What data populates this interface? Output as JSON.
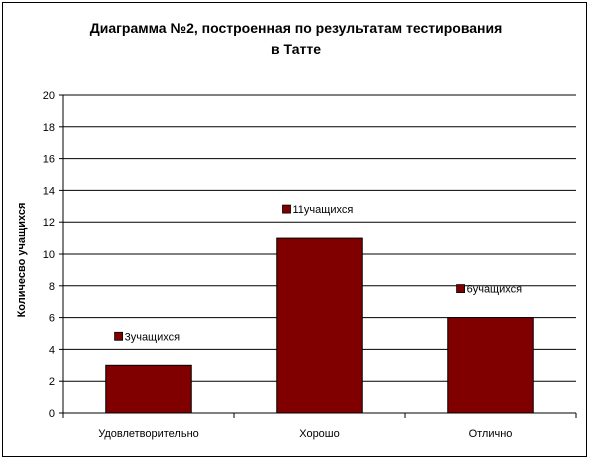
{
  "chart_data": {
    "type": "bar",
    "title_lines": [
      "Диаграмма №2, построенная по результатам тестирования",
      "в Татте"
    ],
    "xlabel": "",
    "ylabel": "Количесво учащихся",
    "categories": [
      "Удовлетворительно",
      "Хорошо",
      "Отлично"
    ],
    "values": [
      3,
      11,
      6
    ],
    "data_labels": [
      "3учащихся",
      "11учащихся",
      "6учащихся"
    ],
    "ylim": [
      0,
      20
    ],
    "ytick_step": 2,
    "grid": true,
    "legend": "none",
    "colors": {
      "bar": "#800000",
      "bar_border": "#000000",
      "grid": "#000000"
    }
  }
}
